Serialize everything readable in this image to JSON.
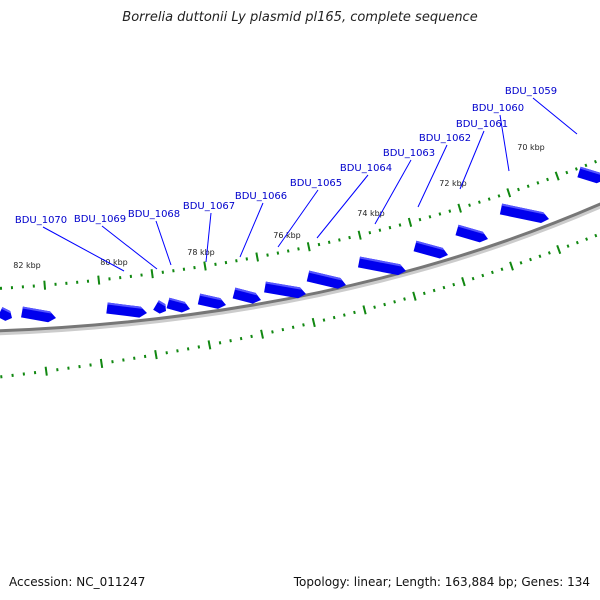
{
  "title": "Borrelia duttonii Ly plasmid pl165, complete sequence",
  "footer": {
    "accession": "Accession: NC_011247",
    "summary": "Topology: linear; Length: 163,884 bp; Genes: 134"
  },
  "colors": {
    "gene": "#0000ee",
    "gene_shade": "#5555ff",
    "tick": "#118811",
    "backbone": "#777777",
    "label": "#0000cc",
    "leader": "#0000ff"
  },
  "kbp_labels": [
    "70 kbp",
    "72 kbp",
    "74 kbp",
    "76 kbp",
    "78 kbp",
    "80 kbp",
    "82 kbp"
  ],
  "genes": [
    "BDU_1059",
    "BDU_1060",
    "BDU_1061",
    "BDU_1062",
    "BDU_1063",
    "BDU_1064",
    "BDU_1065",
    "BDU_1066",
    "BDU_1067",
    "BDU_1068",
    "BDU_1069",
    "BDU_1070"
  ]
}
